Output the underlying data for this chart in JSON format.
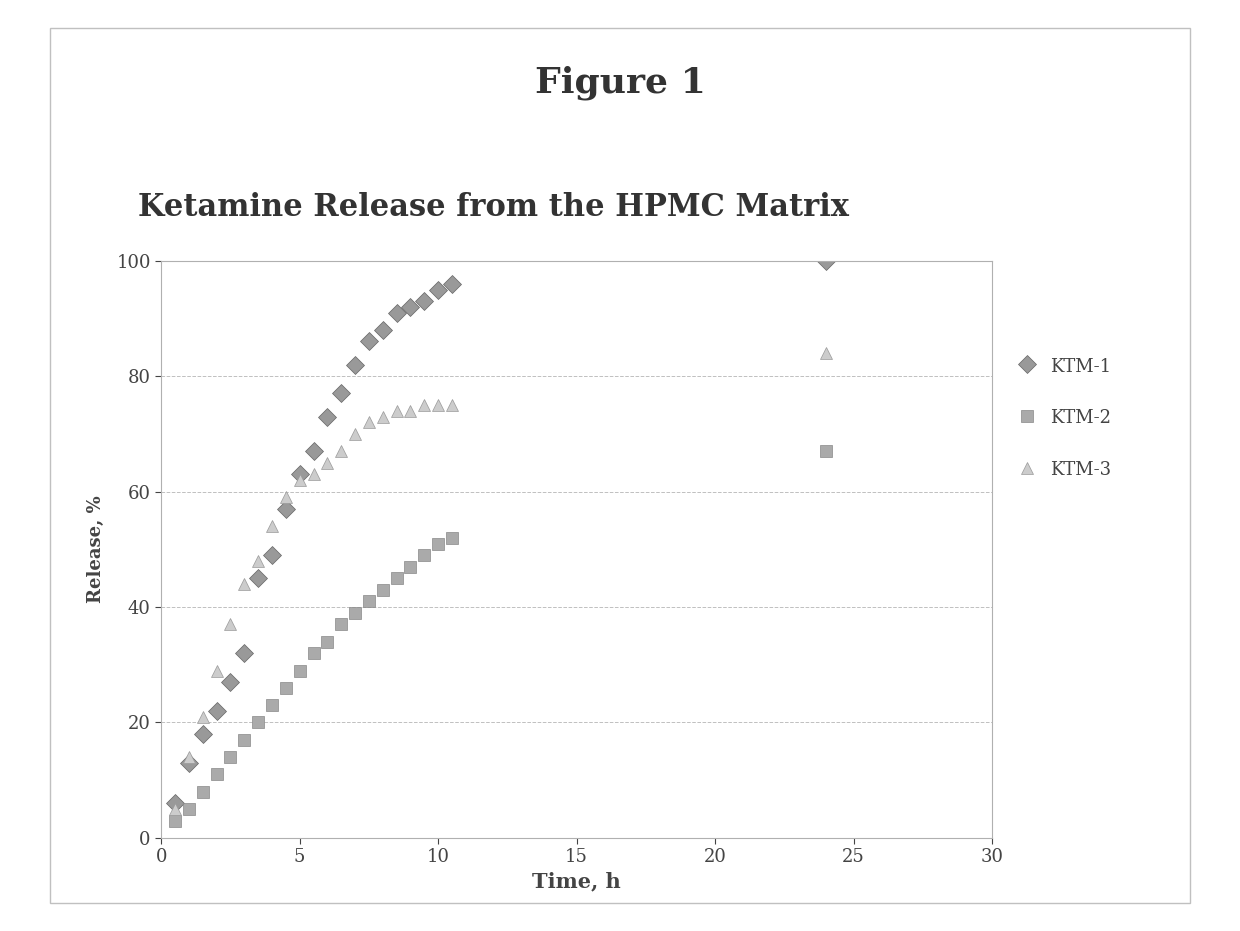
{
  "figure_title": "Figure 1",
  "chart_title": "Ketamine Release from the HPMC Matrix",
  "xlabel": "Time, h",
  "ylabel": "Release, %",
  "xlim": [
    0,
    30
  ],
  "ylim": [
    0,
    100
  ],
  "xticks": [
    0,
    5,
    10,
    15,
    20,
    25,
    30
  ],
  "yticks": [
    0,
    20,
    40,
    60,
    80,
    100
  ],
  "KTM1": {
    "time": [
      0.5,
      1.0,
      1.5,
      2.0,
      2.5,
      3.0,
      3.5,
      4.0,
      4.5,
      5.0,
      5.5,
      6.0,
      6.5,
      7.0,
      7.5,
      8.0,
      8.5,
      9.0,
      9.5,
      10.0,
      10.5,
      24.0
    ],
    "release": [
      6,
      13,
      18,
      22,
      27,
      32,
      45,
      49,
      57,
      63,
      67,
      73,
      77,
      82,
      86,
      88,
      91,
      92,
      93,
      95,
      96,
      100
    ],
    "marker": "D",
    "label": "KTM-1"
  },
  "KTM2": {
    "time": [
      0.5,
      1.0,
      1.5,
      2.0,
      2.5,
      3.0,
      3.5,
      4.0,
      4.5,
      5.0,
      5.5,
      6.0,
      6.5,
      7.0,
      7.5,
      8.0,
      8.5,
      9.0,
      9.5,
      10.0,
      10.5,
      24.0
    ],
    "release": [
      3,
      5,
      8,
      11,
      14,
      17,
      20,
      23,
      26,
      29,
      32,
      34,
      37,
      39,
      41,
      43,
      45,
      47,
      49,
      51,
      52,
      67
    ],
    "marker": "s",
    "label": "KTM-2"
  },
  "KTM3": {
    "time": [
      0.5,
      1.0,
      1.5,
      2.0,
      2.5,
      3.0,
      3.5,
      4.0,
      4.5,
      5.0,
      5.5,
      6.0,
      6.5,
      7.0,
      7.5,
      8.0,
      8.5,
      9.0,
      9.5,
      10.0,
      10.5,
      24.0
    ],
    "release": [
      5,
      14,
      21,
      29,
      37,
      44,
      48,
      54,
      59,
      62,
      63,
      65,
      67,
      70,
      72,
      73,
      74,
      74,
      75,
      75,
      75,
      84
    ],
    "marker": "^",
    "label": "KTM-3"
  },
  "figure_title_fontsize": 26,
  "chart_title_fontsize": 22,
  "xlabel_fontsize": 15,
  "ylabel_fontsize": 13,
  "tick_fontsize": 13,
  "legend_fontsize": 13,
  "marker_size": 9
}
